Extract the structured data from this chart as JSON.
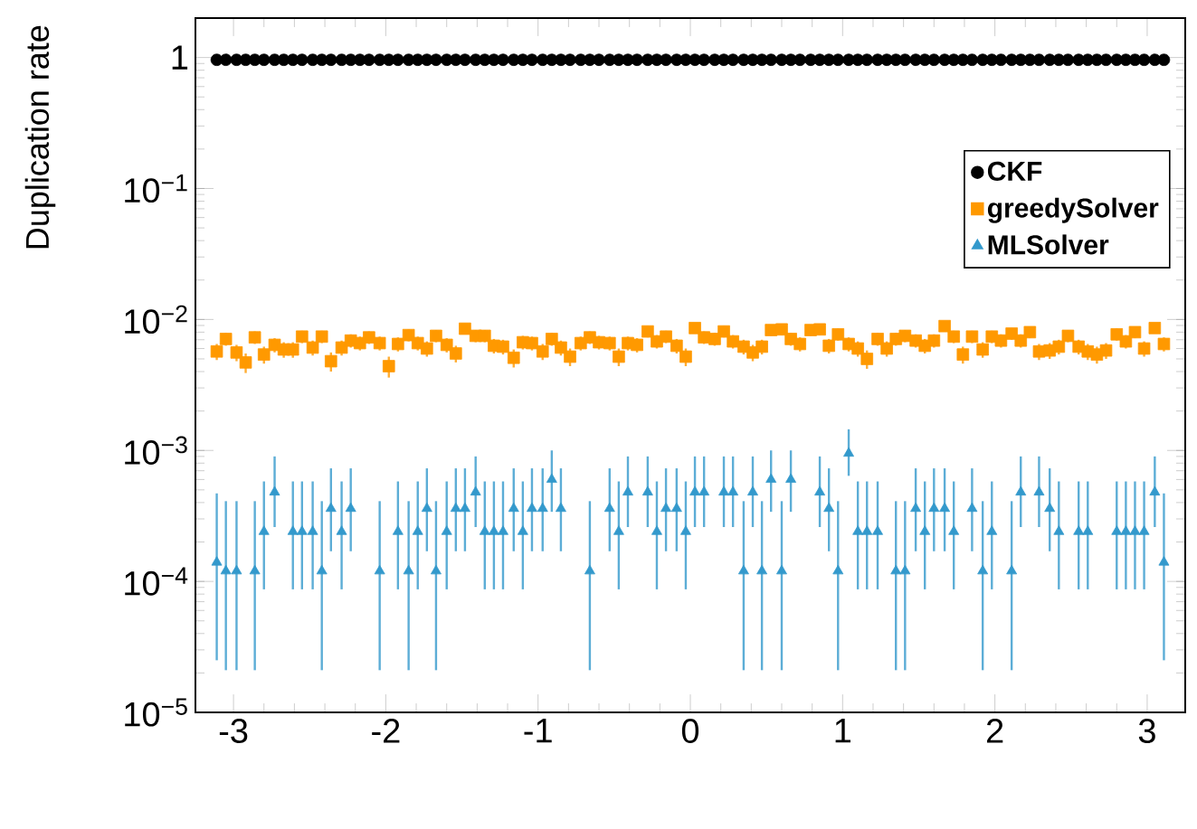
{
  "chart_data": {
    "type": "scatter",
    "ylabel": "Duplication rate",
    "log": "y",
    "legend": "top right",
    "grid": false,
    "xlim": [
      -3.25,
      3.25
    ],
    "xticks": [
      -3,
      -2,
      -1,
      0,
      1,
      2,
      3
    ],
    "ylim": [
      1e-05,
      2
    ],
    "yticks": [
      {
        "value": 1e-05,
        "label": "10$^{−5}$"
      },
      {
        "value": 0.0001,
        "label": "10$^{−4}$"
      },
      {
        "value": 0.001,
        "label": "10$^{−3}$"
      },
      {
        "value": 0.01,
        "label": "10$^{−2}$"
      },
      {
        "value": 0.1,
        "label": "10$^{−1}$"
      },
      1
    ],
    "x": [
      -3.11,
      -3.05,
      -2.98,
      -2.92,
      -2.86,
      -2.8,
      -2.73,
      -2.67,
      -2.61,
      -2.55,
      -2.48,
      -2.42,
      -2.36,
      -2.29,
      -2.23,
      -2.17,
      -2.11,
      -2.04,
      -1.98,
      -1.92,
      -1.85,
      -1.79,
      -1.73,
      -1.67,
      -1.6,
      -1.54,
      -1.48,
      -1.41,
      -1.35,
      -1.29,
      -1.23,
      -1.16,
      -1.1,
      -1.04,
      -0.97,
      -0.91,
      -0.85,
      -0.79,
      -0.72,
      -0.66,
      -0.6,
      -0.53,
      -0.47,
      -0.41,
      -0.35,
      -0.28,
      -0.22,
      -0.16,
      -0.09,
      -0.03,
      0.03,
      0.09,
      0.16,
      0.22,
      0.28,
      0.35,
      0.41,
      0.47,
      0.53,
      0.6,
      0.66,
      0.72,
      0.79,
      0.85,
      0.91,
      0.97,
      1.04,
      1.1,
      1.16,
      1.23,
      1.29,
      1.35,
      1.41,
      1.48,
      1.54,
      1.6,
      1.67,
      1.73,
      1.79,
      1.85,
      1.92,
      1.98,
      2.04,
      2.11,
      2.17,
      2.23,
      2.29,
      2.36,
      2.42,
      2.48,
      2.55,
      2.61,
      2.67,
      2.73,
      2.8,
      2.86,
      2.92,
      2.98,
      3.05,
      3.11
    ],
    "series": [
      {
        "name": "CKF",
        "color": "#000000",
        "marker": "circle",
        "values": [
          0.96,
          0.96,
          0.96,
          0.96,
          0.96,
          0.96,
          0.96,
          0.96,
          0.96,
          0.96,
          0.96,
          0.96,
          0.96,
          0.96,
          0.96,
          0.96,
          0.96,
          0.96,
          0.96,
          0.96,
          0.96,
          0.96,
          0.96,
          0.96,
          0.96,
          0.96,
          0.96,
          0.96,
          0.96,
          0.96,
          0.96,
          0.96,
          0.96,
          0.96,
          0.96,
          0.96,
          0.96,
          0.96,
          0.96,
          0.96,
          0.96,
          0.96,
          0.96,
          0.96,
          0.96,
          0.96,
          0.96,
          0.96,
          0.96,
          0.96,
          0.96,
          0.96,
          0.96,
          0.96,
          0.96,
          0.96,
          0.96,
          0.96,
          0.96,
          0.96,
          0.96,
          0.96,
          0.96,
          0.96,
          0.96,
          0.96,
          0.96,
          0.96,
          0.96,
          0.96,
          0.96,
          0.96,
          0.96,
          0.96,
          0.96,
          0.96,
          0.96,
          0.96,
          0.96,
          0.96,
          0.96,
          0.96,
          0.96,
          0.96,
          0.96,
          0.96,
          0.96,
          0.96,
          0.96,
          0.96,
          0.96,
          0.96,
          0.96,
          0.96,
          0.96,
          0.96,
          0.96,
          0.96,
          0.96,
          0.96
        ]
      },
      {
        "name": "greedySolver",
        "color": "#ff9900",
        "marker": "square",
        "values": [
          0.0057,
          0.0071,
          0.0056,
          0.0047,
          0.0073,
          0.0054,
          0.0064,
          0.0059,
          0.0059,
          0.0074,
          0.0061,
          0.0074,
          0.0048,
          0.0061,
          0.0069,
          0.0066,
          0.0073,
          0.0066,
          0.0044,
          0.0065,
          0.0076,
          0.0066,
          0.006,
          0.0075,
          0.0064,
          0.0055,
          0.0085,
          0.0075,
          0.0075,
          0.0063,
          0.0062,
          0.0051,
          0.0067,
          0.0066,
          0.0057,
          0.0071,
          0.0061,
          0.0052,
          0.0066,
          0.0073,
          0.0067,
          0.0066,
          0.0052,
          0.0066,
          0.0064,
          0.0081,
          0.0068,
          0.0074,
          0.0063,
          0.0052,
          0.0086,
          0.0073,
          0.0071,
          0.0081,
          0.0068,
          0.0062,
          0.0056,
          0.0062,
          0.0083,
          0.0084,
          0.0071,
          0.0065,
          0.0083,
          0.0084,
          0.0063,
          0.0077,
          0.0065,
          0.006,
          0.005,
          0.0071,
          0.006,
          0.0071,
          0.0075,
          0.0069,
          0.0063,
          0.0069,
          0.0089,
          0.0074,
          0.0054,
          0.0074,
          0.0059,
          0.0074,
          0.0069,
          0.0078,
          0.0069,
          0.008,
          0.0057,
          0.0058,
          0.0062,
          0.0075,
          0.0062,
          0.0057,
          0.0054,
          0.0058,
          0.0077,
          0.0068,
          0.008,
          0.006,
          0.0086,
          0.0065
        ],
        "errors": [
          0.0008,
          0.0008,
          0.0008,
          0.0008,
          0.0008,
          0.0008,
          0.0008,
          0.0008,
          0.0008,
          0.0008,
          0.0008,
          0.0008,
          0.0008,
          0.0008,
          0.0008,
          0.0008,
          0.0008,
          0.0008,
          0.0008,
          0.0008,
          0.0008,
          0.0008,
          0.0008,
          0.0008,
          0.0008,
          0.0008,
          0.0008,
          0.0008,
          0.0008,
          0.0008,
          0.0008,
          0.0008,
          0.0008,
          0.0008,
          0.0008,
          0.0008,
          0.0008,
          0.0008,
          0.0008,
          0.0008,
          0.0008,
          0.0008,
          0.0008,
          0.0008,
          0.0008,
          0.0008,
          0.0008,
          0.0008,
          0.0008,
          0.0008,
          0.0008,
          0.0008,
          0.0008,
          0.0008,
          0.0008,
          0.0008,
          0.0008,
          0.0008,
          0.0008,
          0.0008,
          0.0008,
          0.0008,
          0.0008,
          0.0008,
          0.0008,
          0.0008,
          0.0008,
          0.0008,
          0.0008,
          0.0008,
          0.0008,
          0.0008,
          0.0008,
          0.0008,
          0.0008,
          0.0008,
          0.0008,
          0.0008,
          0.0008,
          0.0008,
          0.0008,
          0.0008,
          0.0008,
          0.0008,
          0.0008,
          0.0008,
          0.0008,
          0.0008,
          0.0008,
          0.0008,
          0.0008,
          0.0008,
          0.0008,
          0.0008,
          0.0008,
          0.0008,
          0.0008,
          0.0008,
          0.0008,
          0.0008
        ]
      },
      {
        "name": "MLSolver",
        "color": "#3399cc",
        "marker": "triangle",
        "values": [
          0.00014,
          0.00012,
          0.00012,
          null,
          0.00012,
          0.00024,
          0.00048,
          null,
          0.00024,
          0.00024,
          0.00024,
          0.00012,
          0.00036,
          0.00024,
          0.00036,
          null,
          null,
          0.00012,
          null,
          0.00024,
          0.00012,
          0.00024,
          0.00036,
          0.00012,
          0.00024,
          0.00036,
          0.00036,
          0.00048,
          0.00024,
          0.00024,
          0.00024,
          0.00036,
          0.00024,
          0.00036,
          0.00036,
          0.0006,
          0.00036,
          null,
          null,
          0.00012,
          null,
          0.00036,
          0.00024,
          0.00048,
          null,
          0.00048,
          0.00024,
          0.00036,
          0.00036,
          0.00024,
          0.00048,
          0.00048,
          null,
          0.00048,
          0.00048,
          0.00012,
          0.00048,
          0.00012,
          0.0006,
          0.00012,
          0.0006,
          null,
          null,
          0.00048,
          0.00036,
          0.00012,
          0.00095,
          0.00024,
          0.00024,
          0.00024,
          null,
          0.00012,
          0.00012,
          0.00036,
          0.00024,
          0.00036,
          0.00036,
          0.00024,
          null,
          0.00036,
          0.00012,
          0.00024,
          null,
          0.00012,
          0.00048,
          null,
          0.00048,
          0.00036,
          0.00024,
          null,
          0.00024,
          0.00024,
          null,
          null,
          0.00024,
          0.00024,
          0.00024,
          0.00024,
          0.00048,
          0.00014
        ],
        "errors": [
          [
            2.5e-05,
            0.00047
          ],
          [
            2.1e-05,
            0.00041
          ],
          [
            2.1e-05,
            0.00041
          ],
          null,
          [
            2.1e-05,
            0.00041
          ],
          [
            8.7e-05,
            0.00058
          ],
          [
            0.00026,
            0.0009
          ],
          null,
          [
            8.7e-05,
            0.00058
          ],
          [
            8.7e-05,
            0.00058
          ],
          [
            8.7e-05,
            0.00058
          ],
          [
            2.1e-05,
            0.00041
          ],
          [
            0.00017,
            0.00073
          ],
          [
            8.7e-05,
            0.00058
          ],
          [
            0.00017,
            0.00073
          ],
          null,
          null,
          [
            2.1e-05,
            0.00041
          ],
          null,
          [
            8.7e-05,
            0.00058
          ],
          [
            2.1e-05,
            0.00041
          ],
          [
            8.7e-05,
            0.00058
          ],
          [
            0.00017,
            0.00073
          ],
          [
            2.1e-05,
            0.00041
          ],
          [
            8.7e-05,
            0.00058
          ],
          [
            0.00017,
            0.00073
          ],
          [
            0.00017,
            0.00073
          ],
          [
            0.00026,
            0.0009
          ],
          [
            8.7e-05,
            0.00058
          ],
          [
            8.7e-05,
            0.00058
          ],
          [
            8.7e-05,
            0.00058
          ],
          [
            0.00017,
            0.00073
          ],
          [
            8.7e-05,
            0.00058
          ],
          [
            0.00017,
            0.00073
          ],
          [
            0.00017,
            0.00073
          ],
          [
            0.00034,
            0.001
          ],
          [
            0.00017,
            0.00073
          ],
          null,
          null,
          [
            2.1e-05,
            0.00041
          ],
          null,
          [
            0.00017,
            0.00073
          ],
          [
            8.7e-05,
            0.00058
          ],
          [
            0.00026,
            0.0009
          ],
          null,
          [
            0.00026,
            0.0009
          ],
          [
            8.7e-05,
            0.00058
          ],
          [
            0.00017,
            0.00073
          ],
          [
            0.00017,
            0.00073
          ],
          [
            8.7e-05,
            0.00058
          ],
          [
            0.00026,
            0.0009
          ],
          [
            0.00026,
            0.0009
          ],
          null,
          [
            0.00026,
            0.0009
          ],
          [
            0.00026,
            0.0009
          ],
          [
            2.1e-05,
            0.00041
          ],
          [
            0.00026,
            0.0009
          ],
          [
            2.1e-05,
            0.00041
          ],
          [
            0.00034,
            0.001
          ],
          [
            2.1e-05,
            0.00041
          ],
          [
            0.00034,
            0.001
          ],
          null,
          null,
          [
            0.00026,
            0.0009
          ],
          [
            0.00017,
            0.00073
          ],
          [
            2.1e-05,
            0.00041
          ],
          [
            0.00064,
            0.00145
          ],
          [
            8.7e-05,
            0.00058
          ],
          [
            8.7e-05,
            0.00058
          ],
          [
            8.7e-05,
            0.00058
          ],
          null,
          [
            2.1e-05,
            0.00041
          ],
          [
            2.1e-05,
            0.00041
          ],
          [
            0.00017,
            0.00073
          ],
          [
            8.7e-05,
            0.00058
          ],
          [
            0.00017,
            0.00073
          ],
          [
            0.00017,
            0.00073
          ],
          [
            8.7e-05,
            0.00058
          ],
          null,
          [
            0.00017,
            0.00073
          ],
          [
            2.1e-05,
            0.00041
          ],
          [
            8.7e-05,
            0.00058
          ],
          null,
          [
            2.1e-05,
            0.00041
          ],
          [
            0.00026,
            0.0009
          ],
          null,
          [
            0.00026,
            0.0009
          ],
          [
            0.00017,
            0.00073
          ],
          [
            8.7e-05,
            0.00058
          ],
          null,
          [
            8.7e-05,
            0.00058
          ],
          [
            8.7e-05,
            0.00058
          ],
          null,
          null,
          [
            8.7e-05,
            0.00058
          ],
          [
            8.7e-05,
            0.00058
          ],
          [
            8.7e-05,
            0.00058
          ],
          [
            8.7e-05,
            0.00058
          ],
          [
            0.00026,
            0.0009
          ],
          [
            2.5e-05,
            0.00047
          ]
        ]
      }
    ]
  }
}
